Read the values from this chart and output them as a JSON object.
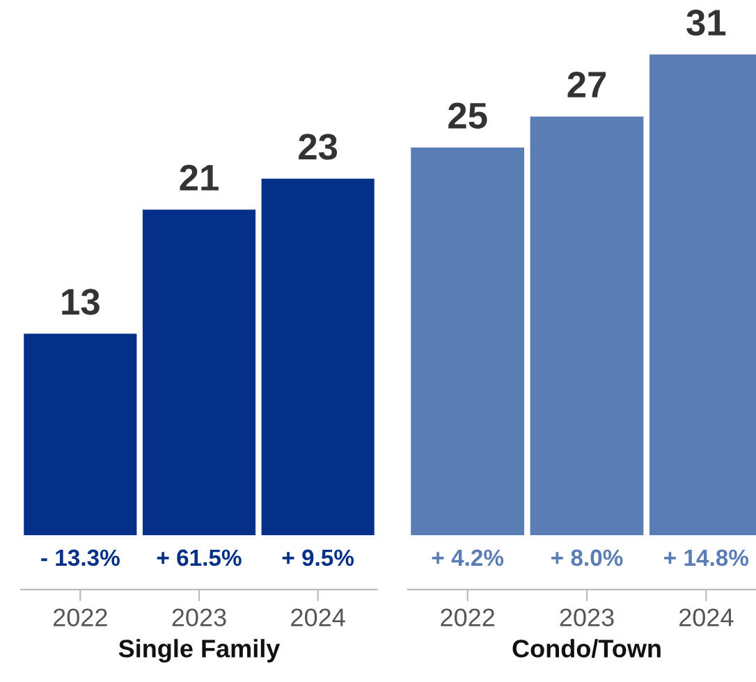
{
  "chart_data": [
    {
      "type": "bar",
      "xlabel": "Single Family",
      "categories": [
        "2022",
        "2023",
        "2024"
      ],
      "values": [
        13,
        21,
        23
      ],
      "color": "#05308a",
      "data_labels": true,
      "tick_labels": "x",
      "grid": false,
      "annotations": [
        "- 13.3%",
        "+ 61.5%",
        "+ 9.5%"
      ]
    },
    {
      "type": "bar",
      "xlabel": "Condo/Town",
      "categories": [
        "2022",
        "2023",
        "2024"
      ],
      "values": [
        25,
        27,
        31
      ],
      "color": "#5b7db6",
      "data_labels": true,
      "tick_labels": "x",
      "grid": false,
      "annotations": [
        "+ 4.2%",
        "+ 8.0%",
        "+ 14.8%"
      ]
    }
  ]
}
